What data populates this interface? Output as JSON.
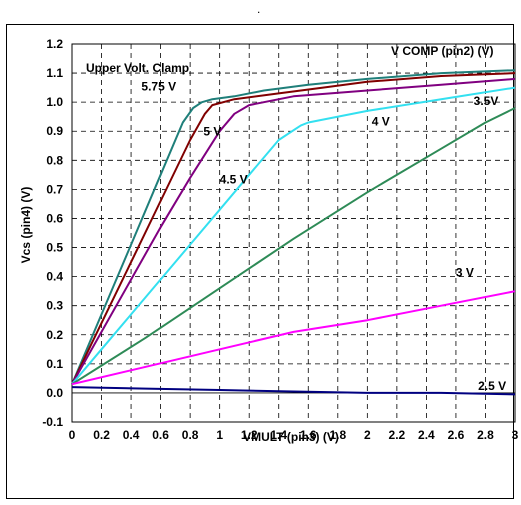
{
  "top_mark": ".",
  "chart_data": {
    "type": "line",
    "xlabel": "VMULT (pin3) (V)",
    "ylabel": "Vcs (pin4) (V)",
    "xlim": [
      0,
      3
    ],
    "ylim": [
      -0.1,
      1.2
    ],
    "x_ticks": [
      "0",
      "0.2",
      "0.4",
      "0.6",
      "0.8",
      "1",
      "1.2",
      "1.4",
      "1.6",
      "1.8",
      "2",
      "2.2",
      "2.4",
      "2.6",
      "2.8",
      "3"
    ],
    "y_ticks": [
      "-0.1",
      "0.0",
      "0.1",
      "0.2",
      "0.3",
      "0.4",
      "0.5",
      "0.6",
      "0.7",
      "0.8",
      "0.9",
      "1.0",
      "1.1",
      "1.2"
    ],
    "grid": "dashed",
    "annotations": {
      "clamp": "Upper Volt. Clamp",
      "legend_title": "V COMP (pin2) (V)"
    },
    "series": [
      {
        "name": "5.75 V",
        "color": "#1f7f7a",
        "x": [
          0,
          0.2,
          0.4,
          0.6,
          0.75,
          0.82,
          0.88,
          0.95,
          1.1,
          1.3,
          1.6,
          2.0,
          2.5,
          3.0
        ],
        "y": [
          0.03,
          0.27,
          0.51,
          0.75,
          0.93,
          0.98,
          1.0,
          1.01,
          1.02,
          1.04,
          1.06,
          1.08,
          1.1,
          1.11
        ]
      },
      {
        "name": "5 V",
        "color": "#800000",
        "x": [
          0,
          0.2,
          0.4,
          0.6,
          0.8,
          0.9,
          0.95,
          1.1,
          1.4,
          1.7,
          2.0,
          2.5,
          3.0
        ],
        "y": [
          0.03,
          0.24,
          0.45,
          0.66,
          0.87,
          0.96,
          0.99,
          1.01,
          1.03,
          1.05,
          1.07,
          1.09,
          1.1
        ]
      },
      {
        "name": "4.5 V",
        "color": "#800080",
        "x": [
          0,
          0.2,
          0.4,
          0.6,
          0.8,
          1.0,
          1.1,
          1.2,
          1.5,
          2.0,
          2.5,
          3.0
        ],
        "y": [
          0.03,
          0.21,
          0.39,
          0.57,
          0.74,
          0.9,
          0.96,
          0.99,
          1.02,
          1.04,
          1.06,
          1.08
        ]
      },
      {
        "name": "4 V",
        "color": "#33e0f0",
        "x": [
          0,
          0.2,
          0.4,
          0.6,
          0.8,
          1.0,
          1.2,
          1.4,
          1.55,
          1.6,
          2.0,
          2.5,
          3.0
        ],
        "y": [
          0.03,
          0.15,
          0.27,
          0.39,
          0.51,
          0.63,
          0.75,
          0.87,
          0.92,
          0.93,
          0.97,
          1.01,
          1.05
        ]
      },
      {
        "name": "3.5V",
        "color": "#2e8b57",
        "x": [
          0,
          0.5,
          1.0,
          1.5,
          2.0,
          2.5,
          2.8,
          3.0
        ],
        "y": [
          0.03,
          0.19,
          0.36,
          0.53,
          0.69,
          0.84,
          0.93,
          0.98
        ]
      },
      {
        "name": "3 V",
        "color": "#ff00ff",
        "x": [
          0,
          0.5,
          1.0,
          1.5,
          2.0,
          2.5,
          3.0
        ],
        "y": [
          0.03,
          0.09,
          0.15,
          0.21,
          0.25,
          0.3,
          0.35
        ]
      },
      {
        "name": "2.5 V",
        "color": "#000080",
        "x": [
          0,
          0.5,
          1.0,
          1.5,
          2.0,
          2.5,
          3.0
        ],
        "y": [
          0.02,
          0.015,
          0.01,
          0.005,
          0.0,
          0.0,
          -0.005
        ]
      }
    ],
    "series_label_anchor": [
      {
        "name": "5.75 V",
        "x": 0.47,
        "y": 1.04
      },
      {
        "name": "5 V",
        "x": 0.89,
        "y": 0.885
      },
      {
        "name": "4.5 V",
        "x": 1.0,
        "y": 0.72
      },
      {
        "name": "4 V",
        "x": 2.03,
        "y": 0.92
      },
      {
        "name": "3.5V",
        "x": 2.72,
        "y": 0.99
      },
      {
        "name": "3 V",
        "x": 2.6,
        "y": 0.4
      },
      {
        "name": "2.5 V",
        "x": 2.75,
        "y": 0.01
      }
    ]
  }
}
